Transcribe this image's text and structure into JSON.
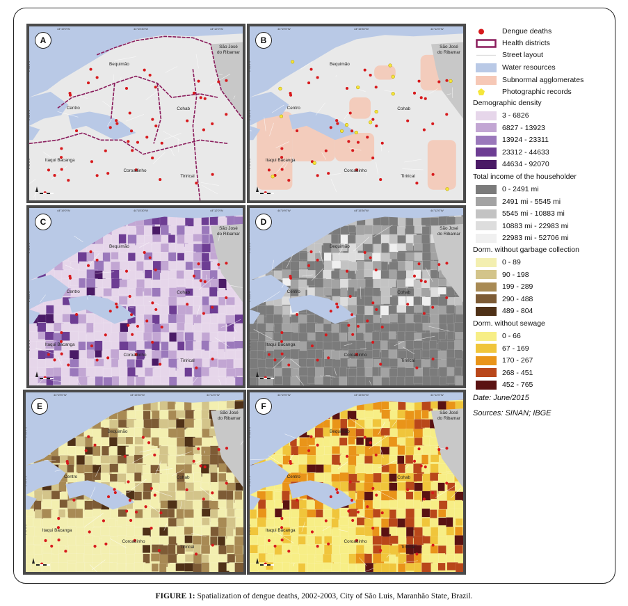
{
  "panels": [
    {
      "label": "A",
      "style": "health_districts"
    },
    {
      "label": "B",
      "style": "subnormal_agglomerates"
    },
    {
      "label": "C",
      "style": "demographic_density"
    },
    {
      "label": "D",
      "style": "householder_income"
    },
    {
      "label": "E",
      "style": "garbage_collection"
    },
    {
      "label": "F",
      "style": "sewage"
    }
  ],
  "neighborhoods": [
    "Bequimão",
    "Centro",
    "Cohab",
    "Itaqui Bacanga",
    "Coroadinho",
    "Tirirical",
    "São José",
    "do Ribamar"
  ],
  "ticks": {
    "top": [
      "44°19'0\"W",
      "44°15'30\"W",
      "44°12'0\"W"
    ],
    "left": [
      "2°31'0\"S",
      "2°34'0\"S",
      "2°37'0\"S"
    ]
  },
  "colors": {
    "water": "#b9c9e6",
    "land_outside": "#c8c8c8",
    "base": "#e9e9e9",
    "district_line": "#8a1c5c",
    "death_dot": "#d7191c",
    "subnormal": "#f4c7b4",
    "photo": "#f5e63a"
  },
  "legend": {
    "points": [
      {
        "label": "Dengue deaths",
        "icon": "red-dot-icon"
      },
      {
        "label": "Health districts",
        "icon": "district-box-icon"
      },
      {
        "label": "Street layout",
        "icon": "street-line-icon"
      },
      {
        "label": "Water resources",
        "color": "#b9c9e6"
      },
      {
        "label": "Subnormal agglomerates",
        "color": "#f6c8b6"
      },
      {
        "label": "Photographic records",
        "icon": "yellow-pentagon-icon"
      }
    ],
    "density": {
      "title": "Demographic density",
      "classes": [
        {
          "label": "3 - 6826",
          "color": "#e6d6ea"
        },
        {
          "label": "6827 - 13923",
          "color": "#c2a6d3"
        },
        {
          "label": "13924 - 23311",
          "color": "#9a78bb"
        },
        {
          "label": "23312 - 44633",
          "color": "#6d3d93"
        },
        {
          "label": "44634 - 92070",
          "color": "#4a1a66"
        }
      ]
    },
    "income": {
      "title": "Total income of the householder",
      "classes": [
        {
          "label": "0 - 2491 mi",
          "color": "#7b7b7b"
        },
        {
          "label": "2491 mi - 5545 mi",
          "color": "#a3a3a3"
        },
        {
          "label": "5545 mi - 10883 mi",
          "color": "#c3c3c3"
        },
        {
          "label": "10883 mi - 22983 mi",
          "color": "#dddddd"
        },
        {
          "label": "22983 mi - 52706 mi",
          "color": "#f0f0f0"
        }
      ]
    },
    "garbage": {
      "title": "Dorm. without garbage collection",
      "classes": [
        {
          "label": "0 - 89",
          "color": "#f3efb0"
        },
        {
          "label": "90 - 198",
          "color": "#d3c48a"
        },
        {
          "label": "199 - 289",
          "color": "#a88a54"
        },
        {
          "label": "290 - 488",
          "color": "#7d5b35"
        },
        {
          "label": "489 - 804",
          "color": "#4f3117"
        }
      ]
    },
    "sewage": {
      "title": "Dorm. without sewage",
      "classes": [
        {
          "label": "0 - 66",
          "color": "#f7ee86"
        },
        {
          "label": "67 - 169",
          "color": "#f0c53b"
        },
        {
          "label": "170 - 267",
          "color": "#e99419"
        },
        {
          "label": "268 - 451",
          "color": "#b9471a"
        },
        {
          "label": "452 - 765",
          "color": "#5a1212"
        }
      ]
    },
    "date": "Date: June/2015",
    "sources": "Sources: SINAN; IBGE"
  },
  "caption": {
    "prefix": "FIGURE 1:",
    "text": " Spatialization of dengue deaths, 2002-2003, City of São Luis, Maranhão State, Brazil."
  }
}
